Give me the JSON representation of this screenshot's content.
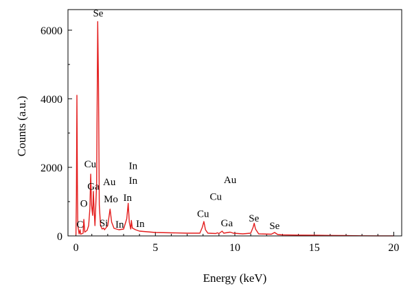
{
  "chart_data": {
    "type": "line",
    "title": "",
    "xlabel": "Energy (keV)",
    "ylabel": "Counts (a.u.)",
    "xlim": [
      -0.5,
      20.5
    ],
    "ylim": [
      0,
      6600
    ],
    "x_ticks": [
      0,
      5,
      10,
      15,
      20
    ],
    "y_ticks": [
      0,
      2000,
      4000,
      6000
    ],
    "grid": false,
    "legend": "none",
    "line_color": "#e31b1b",
    "series": [
      {
        "points": [
          [
            0.0,
            30
          ],
          [
            0.03,
            1200
          ],
          [
            0.06,
            4100
          ],
          [
            0.09,
            1500
          ],
          [
            0.12,
            300
          ],
          [
            0.2,
            60
          ],
          [
            0.26,
            180
          ],
          [
            0.3,
            50
          ],
          [
            0.45,
            80
          ],
          [
            0.5,
            480
          ],
          [
            0.56,
            110
          ],
          [
            0.7,
            160
          ],
          [
            0.8,
            300
          ],
          [
            0.88,
            800
          ],
          [
            0.93,
            1800
          ],
          [
            0.98,
            900
          ],
          [
            1.05,
            600
          ],
          [
            1.1,
            1300
          ],
          [
            1.15,
            700
          ],
          [
            1.2,
            300
          ],
          [
            1.3,
            1500
          ],
          [
            1.37,
            6250
          ],
          [
            1.42,
            4500
          ],
          [
            1.47,
            900
          ],
          [
            1.55,
            300
          ],
          [
            1.65,
            200
          ],
          [
            1.74,
            230
          ],
          [
            1.8,
            180
          ],
          [
            2.0,
            300
          ],
          [
            2.15,
            780
          ],
          [
            2.25,
            400
          ],
          [
            2.4,
            220
          ],
          [
            2.7,
            180
          ],
          [
            3.0,
            200
          ],
          [
            3.2,
            500
          ],
          [
            3.29,
            950
          ],
          [
            3.36,
            400
          ],
          [
            3.45,
            200
          ],
          [
            3.49,
            450
          ],
          [
            3.55,
            230
          ],
          [
            3.75,
            180
          ],
          [
            4.0,
            140
          ],
          [
            4.5,
            120
          ],
          [
            5.0,
            100
          ],
          [
            6.0,
            90
          ],
          [
            7.0,
            80
          ],
          [
            7.8,
            80
          ],
          [
            7.95,
            250
          ],
          [
            8.05,
            420
          ],
          [
            8.15,
            180
          ],
          [
            8.3,
            80
          ],
          [
            8.8,
            70
          ],
          [
            8.9,
            90
          ],
          [
            9.0,
            70
          ],
          [
            9.2,
            140
          ],
          [
            9.3,
            80
          ],
          [
            9.7,
            110
          ],
          [
            9.9,
            80
          ],
          [
            10.5,
            60
          ],
          [
            11.0,
            80
          ],
          [
            11.15,
            250
          ],
          [
            11.22,
            370
          ],
          [
            11.3,
            200
          ],
          [
            11.5,
            60
          ],
          [
            12.3,
            50
          ],
          [
            12.5,
            100
          ],
          [
            12.7,
            40
          ],
          [
            13.0,
            30
          ],
          [
            14.0,
            25
          ],
          [
            15.0,
            20
          ],
          [
            16.0,
            15
          ],
          [
            17.0,
            10
          ],
          [
            18.0,
            5
          ],
          [
            19.0,
            3
          ],
          [
            20.0,
            2
          ]
        ]
      }
    ],
    "annotations": [
      {
        "text": "Se",
        "x": 1.4,
        "y": 6400
      },
      {
        "text": "Cu",
        "x": 0.9,
        "y": 2000
      },
      {
        "text": "Ga",
        "x": 1.1,
        "y": 1350
      },
      {
        "text": "Au",
        "x": 2.1,
        "y": 1480
      },
      {
        "text": "Mo",
        "x": 2.2,
        "y": 980
      },
      {
        "text": "O",
        "x": 0.5,
        "y": 850
      },
      {
        "text": "C",
        "x": 0.25,
        "y": 240
      },
      {
        "text": "Si",
        "x": 1.75,
        "y": 280
      },
      {
        "text": "In",
        "x": 3.6,
        "y": 1950
      },
      {
        "text": "In",
        "x": 3.6,
        "y": 1520
      },
      {
        "text": "In",
        "x": 3.25,
        "y": 1020
      },
      {
        "text": "In",
        "x": 2.75,
        "y": 240
      },
      {
        "text": "In",
        "x": 4.05,
        "y": 260
      },
      {
        "text": "Au",
        "x": 9.7,
        "y": 1540
      },
      {
        "text": "Cu",
        "x": 8.8,
        "y": 1050
      },
      {
        "text": "Cu",
        "x": 8.0,
        "y": 550
      },
      {
        "text": "Ga",
        "x": 9.5,
        "y": 280
      },
      {
        "text": "Se",
        "x": 11.2,
        "y": 420
      },
      {
        "text": "Se",
        "x": 12.5,
        "y": 200
      }
    ]
  }
}
